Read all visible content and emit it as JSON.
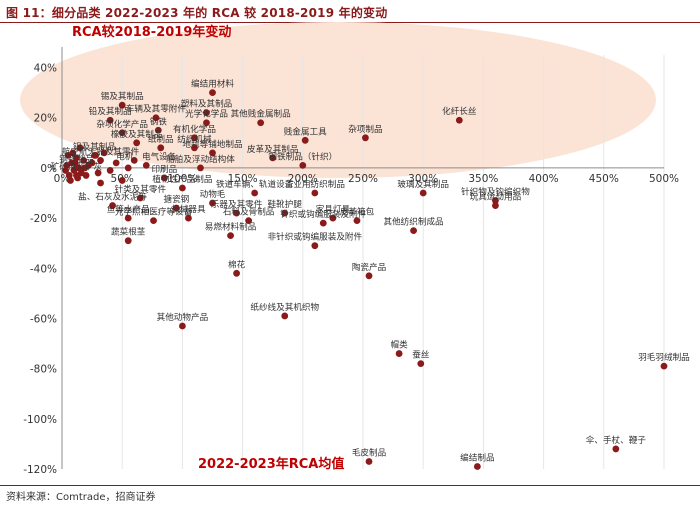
{
  "figure": {
    "title": "图 11：细分品类 2022-2023 年的 RCA 较 2018-2019 年的变动",
    "source": "资料来源：Comtrade，招商证券"
  },
  "colors": {
    "title": "#8b1a1a",
    "point": "#8b1a1a",
    "ellipse": "#fbe3d6",
    "annotation": "#c00000",
    "axis": "#8c8c8c",
    "grid": "#e6e6e6",
    "label": "#333333"
  },
  "chart_data": {
    "type": "scatter",
    "xlabel": "2022-2023年RCA均值",
    "ylabel": "RCA较2018-2019年变动",
    "xlim": [
      0,
      5
    ],
    "ylim": [
      -1.2,
      0.45
    ],
    "x_ticks": [
      0,
      0.5,
      1,
      1.5,
      2,
      2.5,
      3,
      3.5,
      4,
      4.5,
      5
    ],
    "x_tick_labels": [
      "0%",
      "50%",
      "100%",
      "150%",
      "200%",
      "250%",
      "300%",
      "350%",
      "400%",
      "450%",
      "500%"
    ],
    "y_ticks": [
      0.4,
      0.2,
      0,
      -0.2,
      -0.4,
      -0.6,
      -0.8,
      -1.0,
      -1.2
    ],
    "y_tick_labels": [
      "40%",
      "20%",
      "0%",
      "-20%",
      "-40%",
      "-60%",
      "-80%",
      "-100%",
      "-120%"
    ],
    "highlight_region": "RCA上升区间（浅色椭圆）",
    "labeled_points": [
      {
        "label": "锡及其制品",
        "x": 0.5,
        "y": 0.25
      },
      {
        "label": "铅及其制品",
        "x": 0.4,
        "y": 0.19
      },
      {
        "label": "车辆及其零附件",
        "x": 0.78,
        "y": 0.2
      },
      {
        "label": "塑料及其制品",
        "x": 1.2,
        "y": 0.22
      },
      {
        "label": "编结用材料",
        "x": 1.25,
        "y": 0.3
      },
      {
        "label": "杂项化学产品",
        "x": 0.5,
        "y": 0.14
      },
      {
        "label": "钢铁",
        "x": 0.8,
        "y": 0.15
      },
      {
        "label": "光学化学品",
        "x": 1.2,
        "y": 0.18
      },
      {
        "label": "其他贱金属制品",
        "x": 1.65,
        "y": 0.18
      },
      {
        "label": "橡胶及其制品",
        "x": 0.62,
        "y": 0.1
      },
      {
        "label": "有机化学品",
        "x": 1.1,
        "y": 0.12
      },
      {
        "label": "贱金属工具",
        "x": 2.02,
        "y": 0.11
      },
      {
        "label": "杂项制品",
        "x": 2.52,
        "y": 0.12
      },
      {
        "label": "化纤长丝",
        "x": 3.3,
        "y": 0.19
      },
      {
        "label": "铝及其制品",
        "x": 0.27,
        "y": 0.05
      },
      {
        "label": "纸制品",
        "x": 0.82,
        "y": 0.08
      },
      {
        "label": "纺织机械",
        "x": 1.1,
        "y": 0.08
      },
      {
        "label": "地毯等铺地制品",
        "x": 1.25,
        "y": 0.06
      },
      {
        "label": "航空航天器及其零件",
        "x": 0.32,
        "y": 0.03
      },
      {
        "label": "钢铁制品",
        "x": 0.12,
        "y": 0.0
      },
      {
        "label": "电机、电气设备",
        "x": 0.7,
        "y": 0.01
      },
      {
        "label": "船舶及浮动结构体",
        "x": 1.15,
        "y": 0.0
      },
      {
        "label": "皮革及其制品",
        "x": 1.75,
        "y": 0.04
      },
      {
        "label": "钢铁制品（针织）",
        "x": 2.0,
        "y": 0.01
      },
      {
        "label": "矿砂渣及矿灰",
        "x": 0.12,
        "y": -0.03
      },
      {
        "label": "印刷品",
        "x": 0.85,
        "y": -0.04
      },
      {
        "label": "植物性产品制品",
        "x": 1.0,
        "y": -0.08
      },
      {
        "label": "铁道车辆、轨道设备",
        "x": 1.6,
        "y": -0.1
      },
      {
        "label": "动物毛",
        "x": 1.25,
        "y": -0.14
      },
      {
        "label": "工业用纺织制品",
        "x": 2.1,
        "y": -0.1
      },
      {
        "label": "玩具运动用品",
        "x": 3.6,
        "y": -0.15
      },
      {
        "label": "玻璃及其制品",
        "x": 3.0,
        "y": -0.1
      },
      {
        "label": "针织物及钩编织物",
        "x": 3.6,
        "y": -0.13
      },
      {
        "label": "针类及其零件",
        "x": 0.65,
        "y": -0.12
      },
      {
        "label": "搪瓷钢",
        "x": 0.95,
        "y": -0.16
      },
      {
        "label": "乐器及其零件",
        "x": 1.45,
        "y": -0.18
      },
      {
        "label": "鞋靴护腿",
        "x": 1.85,
        "y": -0.18
      },
      {
        "label": "家具灯具",
        "x": 2.25,
        "y": -0.2
      },
      {
        "label": "皮革箱包",
        "x": 2.45,
        "y": -0.21
      },
      {
        "label": "鱼等水产品",
        "x": 0.55,
        "y": -0.2
      },
      {
        "label": "机械器具",
        "x": 1.05,
        "y": -0.2
      },
      {
        "label": "石料及骨制品",
        "x": 1.55,
        "y": -0.21
      },
      {
        "label": "盐、石灰及水泥等",
        "x": 0.42,
        "y": -0.15
      },
      {
        "label": "光学照相医疗等设备",
        "x": 0.76,
        "y": -0.21
      },
      {
        "label": "易燃材料制品",
        "x": 1.4,
        "y": -0.27
      },
      {
        "label": "针织或钩编服装及附件",
        "x": 2.17,
        "y": -0.22
      },
      {
        "label": "其他纺织制成品",
        "x": 2.92,
        "y": -0.25
      },
      {
        "label": "蔬菜根茎",
        "x": 0.55,
        "y": -0.29
      },
      {
        "label": "棉花",
        "x": 1.45,
        "y": -0.42
      },
      {
        "label": "非针织或钩编服装及附件",
        "x": 2.1,
        "y": -0.31
      },
      {
        "label": "陶瓷产品",
        "x": 2.55,
        "y": -0.43
      },
      {
        "label": "其他动物产品",
        "x": 1.0,
        "y": -0.63
      },
      {
        "label": "纸纱线及其机织物",
        "x": 1.85,
        "y": -0.59
      },
      {
        "label": "帽类",
        "x": 2.8,
        "y": -0.74
      },
      {
        "label": "蚕丝",
        "x": 2.98,
        "y": -0.78
      },
      {
        "label": "羽毛羽绒制品",
        "x": 5.0,
        "y": -0.79
      },
      {
        "label": "伞、手杖、鞭子",
        "x": 4.6,
        "y": -1.12
      },
      {
        "label": "毛皮制品",
        "x": 2.55,
        "y": -1.17
      },
      {
        "label": "编结制品",
        "x": 3.45,
        "y": -1.19
      }
    ],
    "cluster_points": [
      {
        "x": 0.05,
        "y": 0.05
      },
      {
        "x": 0.08,
        "y": 0.02
      },
      {
        "x": 0.1,
        "y": -0.01
      },
      {
        "x": 0.12,
        "y": 0.04
      },
      {
        "x": 0.14,
        "y": 0.0
      },
      {
        "x": 0.16,
        "y": -0.02
      },
      {
        "x": 0.06,
        "y": -0.03
      },
      {
        "x": 0.09,
        "y": 0.06
      },
      {
        "x": 0.18,
        "y": 0.03
      },
      {
        "x": 0.2,
        "y": -0.03
      },
      {
        "x": 0.22,
        "y": 0.01
      },
      {
        "x": 0.04,
        "y": 0.01
      },
      {
        "x": 0.25,
        "y": 0.02
      },
      {
        "x": 0.07,
        "y": -0.05
      },
      {
        "x": 0.15,
        "y": 0.08
      },
      {
        "x": 0.3,
        "y": -0.02
      },
      {
        "x": 0.11,
        "y": 0.02
      },
      {
        "x": 0.03,
        "y": -0.01
      },
      {
        "x": 0.19,
        "y": 0.0
      },
      {
        "x": 0.28,
        "y": 0.05
      },
      {
        "x": 0.35,
        "y": 0.06
      },
      {
        "x": 0.4,
        "y": -0.01
      },
      {
        "x": 0.32,
        "y": -0.06
      },
      {
        "x": 0.13,
        "y": -0.04
      },
      {
        "x": 0.45,
        "y": 0.02
      },
      {
        "x": 0.55,
        "y": 0.0
      },
      {
        "x": 0.6,
        "y": 0.03
      },
      {
        "x": 0.5,
        "y": -0.05
      }
    ],
    "annotations": [
      "RCA较2018-2019年变动",
      "2022-2023年RCA均值"
    ]
  }
}
